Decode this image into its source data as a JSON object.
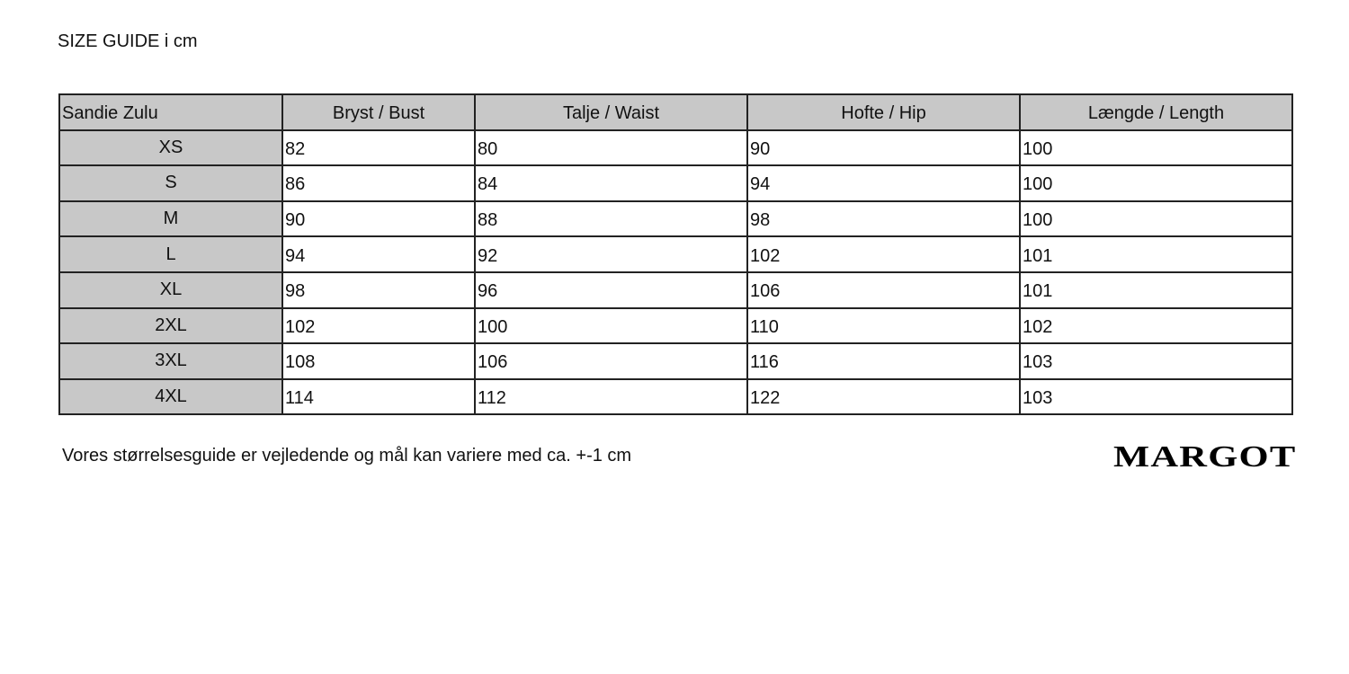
{
  "title": "SIZE GUIDE i cm",
  "table": {
    "headers": [
      "Sandie Zulu",
      "Bryst / Bust",
      "Talje / Waist",
      "Hofte / Hip",
      "Længde / Length"
    ],
    "rows": [
      [
        "XS",
        "82",
        "80",
        "90",
        "100"
      ],
      [
        "S",
        "86",
        "84",
        "94",
        "100"
      ],
      [
        "M",
        "90",
        "88",
        "98",
        "100"
      ],
      [
        "L",
        "94",
        "92",
        "102",
        "101"
      ],
      [
        "XL",
        "98",
        "96",
        "106",
        "101"
      ],
      [
        "2XL",
        "102",
        "100",
        "110",
        "102"
      ],
      [
        "3XL",
        "108",
        "106",
        "116",
        "103"
      ],
      [
        "4XL",
        "114",
        "112",
        "122",
        "103"
      ]
    ]
  },
  "note": "Vores størrelsesguide er vejledende og mål kan variere med ca. +-1 cm",
  "logo": "MARGOT",
  "colors": {
    "header_bg": "#c8c8c8",
    "border": "#222222"
  }
}
